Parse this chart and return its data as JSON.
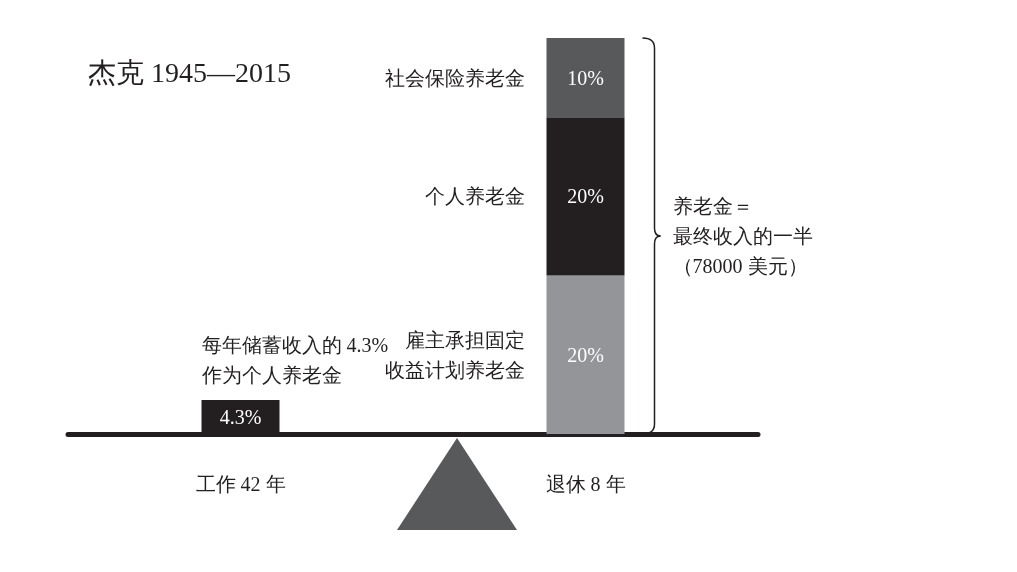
{
  "chart_data": {
    "type": "bar",
    "title": "杰克 1945—2015",
    "categories": [
      "工作 42 年",
      "退休 8 年"
    ],
    "stacked": true,
    "grid": false,
    "legend": false,
    "tick_labels": "x",
    "series": [
      {
        "name": "每年储蓄收入的 4.3%\n作为个人养老金",
        "color": "#231f20",
        "values": [
          4.3,
          null
        ],
        "value_labels": [
          "4.3%",
          null
        ]
      },
      {
        "name": "雇主承担固定收益计划养老金",
        "color": "#939598",
        "values": [
          null,
          20
        ],
        "value_labels": [
          null,
          "20%"
        ]
      },
      {
        "name": "个人养老金",
        "color": "#231f20",
        "values": [
          null,
          20
        ],
        "value_labels": [
          null,
          "20%"
        ]
      },
      {
        "name": "社会保险养老金",
        "color": "#58595b",
        "values": [
          null,
          10
        ],
        "value_labels": [
          null,
          "10%"
        ]
      }
    ],
    "annotations": [
      "养老金＝",
      "最终收入的一半",
      "（78000 美元）"
    ]
  }
}
